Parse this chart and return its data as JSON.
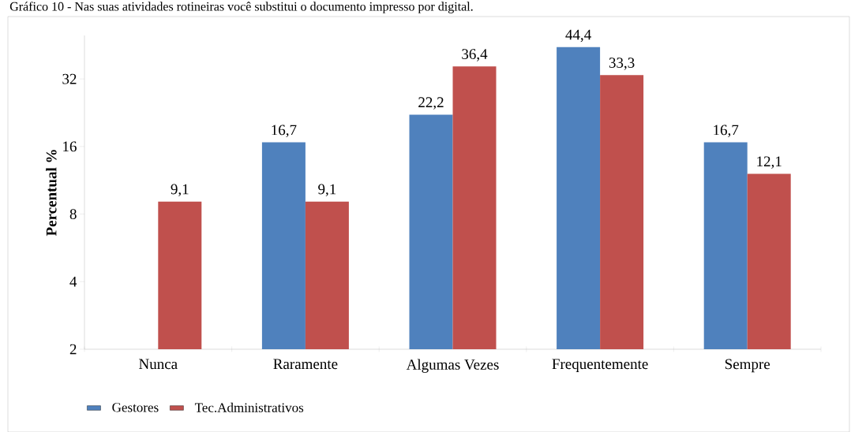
{
  "chart_data": {
    "type": "bar",
    "title": "Gráfico 10 - Nas suas atividades rotineiras você substitui o documento impresso por digital.",
    "ylabel": "Percentual %",
    "categories": [
      "Nunca",
      "Raramente",
      "Algumas  Vezes",
      "Frequentemente",
      "Sempre"
    ],
    "series": [
      {
        "name": "Gestores",
        "color": "#4f81bd",
        "values": [
          null,
          16.7,
          22.2,
          44.4,
          16.7
        ],
        "value_labels": [
          null,
          "16,7",
          "22,2",
          "44,4",
          "16,7"
        ]
      },
      {
        "name": "Tec.Administrativos",
        "color": "#c0504d",
        "values": [
          9.1,
          9.1,
          36.4,
          33.3,
          12.1
        ],
        "value_labels": [
          "9,1",
          "9,1",
          "36,4",
          "33,3",
          "12,1"
        ]
      }
    ],
    "log": "y",
    "ylim": [
      2,
      50
    ],
    "yticks": [
      2,
      4,
      8,
      16,
      32
    ],
    "grid": false,
    "legend": "bottom left"
  }
}
